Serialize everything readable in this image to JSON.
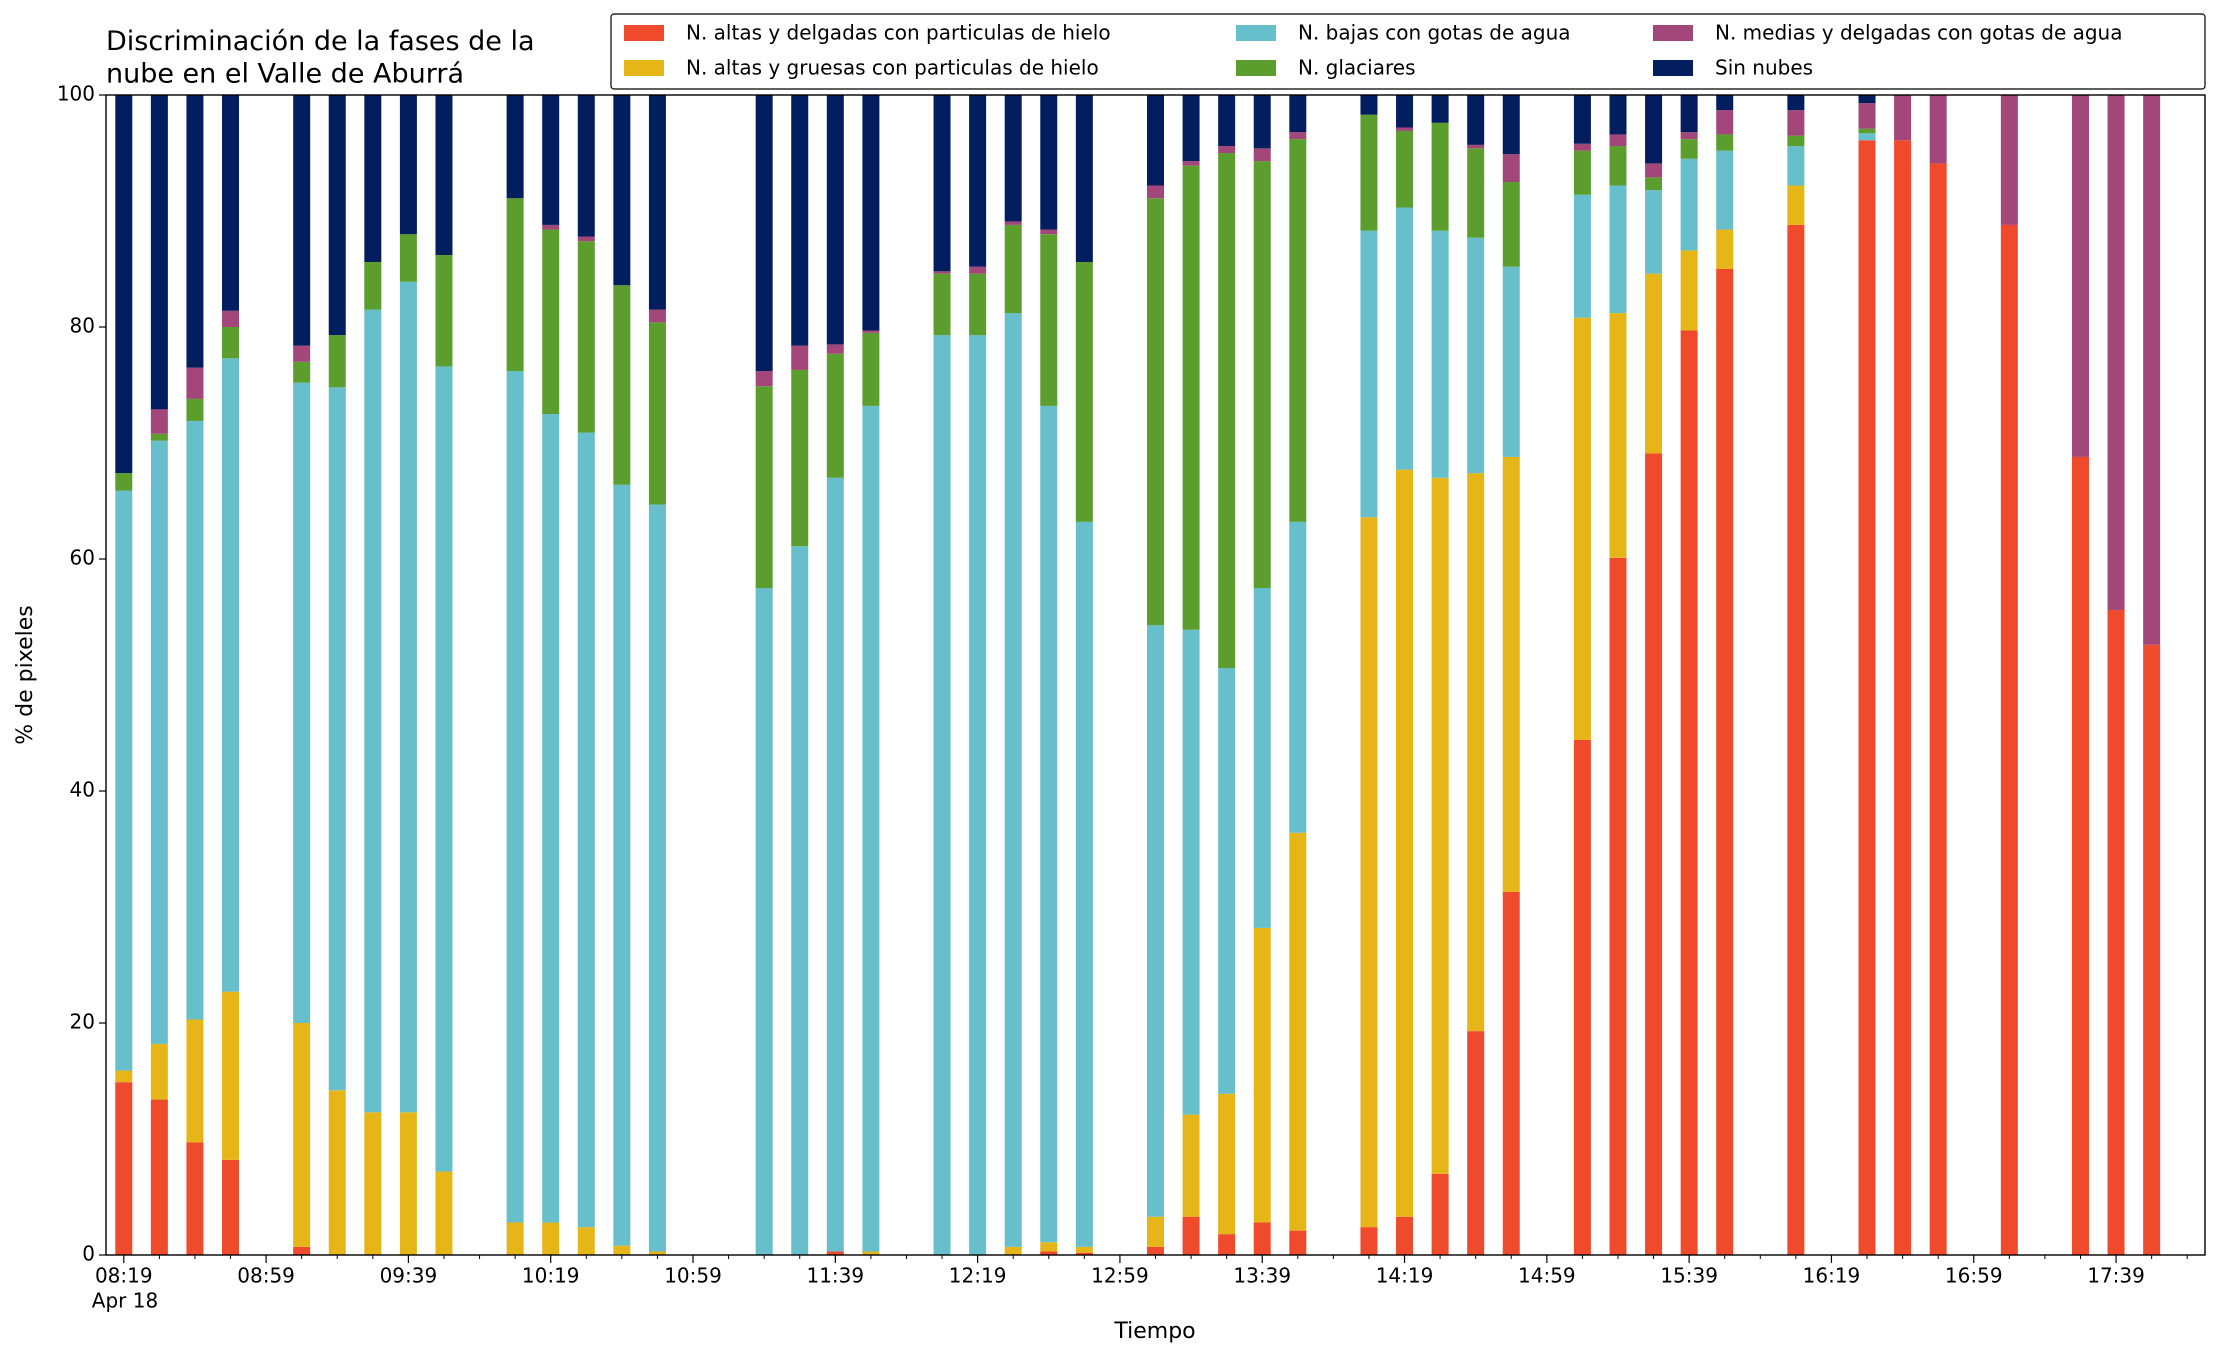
{
  "chart_data": {
    "type": "stacked_bar",
    "title": "Discriminación de la fases de la\nnube en el Valle de Aburrá",
    "x_label": "Tiempo",
    "y_label": "% de pixeles",
    "x_date_label": "Apr 18",
    "x": [
      "08:19",
      "08:29",
      "08:39",
      "08:49",
      "09:09",
      "09:19",
      "09:29",
      "09:39",
      "09:49",
      "10:09",
      "10:19",
      "10:29",
      "10:39",
      "10:49",
      "11:19",
      "11:29",
      "11:39",
      "11:49",
      "12:09",
      "12:19",
      "12:29",
      "12:39",
      "12:49",
      "13:09",
      "13:19",
      "13:29",
      "13:39",
      "13:49",
      "14:09",
      "14:19",
      "14:29",
      "14:39",
      "14:49",
      "15:09",
      "15:19",
      "15:29",
      "15:39",
      "15:49",
      "16:09",
      "16:29",
      "16:39",
      "16:49",
      "17:09",
      "17:29",
      "17:39",
      "17:49"
    ],
    "series": [
      {
        "name": "N. altas y delgadas con particulas de hielo",
        "color": "#f04a2c",
        "values": [
          14.9,
          13.4,
          9.7,
          8.2,
          0.7,
          0,
          0,
          0,
          0,
          0,
          0,
          0,
          0,
          0,
          0,
          0,
          0.3,
          0,
          0,
          0,
          0,
          0.3,
          0.2,
          0.7,
          3.3,
          1.8,
          2.8,
          2.1,
          2.4,
          3.3,
          7.0,
          19.3,
          31.3,
          44.4,
          60.1,
          69.1,
          79.7,
          85.0,
          88.8,
          96.1,
          96.1,
          94.1,
          88.8,
          68.8,
          55.6,
          52.6
        ]
      },
      {
        "name": "N. altas y gruesas con particulas de hielo",
        "color": "#e6b619",
        "values": [
          1.0,
          4.8,
          10.6,
          14.5,
          19.3,
          14.2,
          12.3,
          12.3,
          7.2,
          2.8,
          2.8,
          2.4,
          0.8,
          0.3,
          0,
          0,
          0,
          0.3,
          0,
          0,
          0.7,
          0.8,
          0.5,
          2.6,
          8.8,
          12.1,
          25.4,
          34.3,
          61.2,
          64.4,
          60.0,
          48.1,
          37.5,
          36.4,
          21.1,
          15.5,
          6.9,
          3.4,
          3.4,
          0,
          0,
          0,
          0,
          0,
          0,
          0
        ]
      },
      {
        "name": "N. bajas con gotas de agua",
        "color": "#66bfcb",
        "values": [
          50.0,
          52.0,
          51.6,
          54.6,
          55.2,
          60.6,
          69.2,
          71.6,
          69.4,
          73.4,
          69.7,
          68.5,
          65.6,
          64.4,
          57.5,
          61.1,
          66.7,
          72.9,
          79.3,
          79.3,
          80.5,
          72.1,
          62.5,
          51.0,
          41.8,
          36.7,
          29.3,
          26.8,
          24.7,
          22.6,
          21.3,
          20.3,
          16.4,
          10.6,
          11.0,
          7.2,
          7.9,
          6.8,
          3.4,
          0.6,
          0,
          0,
          0,
          0,
          0,
          0
        ]
      },
      {
        "name": "N. glaciares",
        "color": "#5c9e2e",
        "values": [
          1.5,
          0.6,
          1.9,
          2.7,
          1.8,
          4.5,
          4.1,
          4.1,
          9.6,
          14.9,
          15.9,
          16.5,
          17.2,
          15.7,
          17.4,
          15.2,
          10.7,
          6.3,
          5.3,
          5.3,
          7.6,
          14.8,
          22.4,
          36.8,
          40.0,
          44.4,
          36.8,
          33.0,
          10.0,
          6.6,
          9.3,
          7.7,
          7.3,
          3.8,
          3.4,
          1.1,
          1.7,
          1.4,
          0.9,
          0.4,
          0,
          0,
          0,
          0,
          0,
          0
        ]
      },
      {
        "name": "N. medias y delgadas con gotas de agua",
        "color": "#a34679",
        "values": [
          0,
          2.1,
          2.7,
          1.4,
          1.4,
          0,
          0,
          0,
          0,
          0,
          0.4,
          0.4,
          0,
          1.1,
          1.3,
          2.1,
          0.8,
          0.2,
          0.2,
          0.6,
          0.3,
          0.4,
          0,
          1.1,
          0.4,
          0.6,
          1.1,
          0.6,
          0,
          0.3,
          0,
          0.3,
          2.4,
          0.6,
          1.0,
          1.2,
          0.6,
          2.1,
          2.2,
          2.2,
          3.9,
          5.9,
          11.2,
          31.2,
          44.4,
          47.4
        ]
      },
      {
        "name": "Sin nubes",
        "color": "#031e5e",
        "values": [
          32.6,
          27.1,
          23.5,
          18.6,
          21.6,
          20.7,
          14.4,
          12.0,
          13.8,
          8.9,
          11.2,
          12.2,
          16.4,
          18.5,
          23.8,
          21.6,
          21.5,
          20.3,
          15.2,
          14.8,
          10.9,
          11.6,
          14.4,
          7.8,
          5.7,
          4.4,
          4.6,
          3.2,
          1.7,
          2.8,
          2.4,
          4.3,
          5.1,
          4.2,
          3.4,
          5.9,
          3.2,
          1.3,
          1.3,
          0.7,
          0,
          0,
          0,
          0,
          0,
          0
        ]
      }
    ],
    "xlim": [
      "08:14",
      "18:04"
    ],
    "xticks": [
      "08:19",
      "08:59",
      "09:39",
      "10:19",
      "10:59",
      "11:39",
      "12:19",
      "12:59",
      "13:39",
      "14:19",
      "14:59",
      "15:39",
      "16:19",
      "16:59",
      "17:39"
    ],
    "xminorticks": [
      "08:29",
      "08:39",
      "08:49",
      "09:09",
      "09:19",
      "09:29",
      "09:49",
      "09:59",
      "10:09",
      "10:29",
      "10:39",
      "10:49",
      "11:09",
      "11:19",
      "11:29",
      "11:49",
      "11:59",
      "12:09",
      "12:29",
      "12:39",
      "12:49",
      "13:09",
      "13:19",
      "13:29",
      "13:49",
      "13:59",
      "14:09",
      "14:29",
      "14:39",
      "14:49",
      "15:09",
      "15:19",
      "15:29",
      "15:49",
      "15:59",
      "16:09",
      "16:29",
      "16:39",
      "16:49",
      "17:09",
      "17:19",
      "17:29",
      "17:49",
      "17:59"
    ],
    "ylim": [
      0,
      100
    ],
    "yticks": [
      0,
      20,
      40,
      60,
      80,
      100
    ],
    "legend": "upper right",
    "legend_columns": 3
  }
}
